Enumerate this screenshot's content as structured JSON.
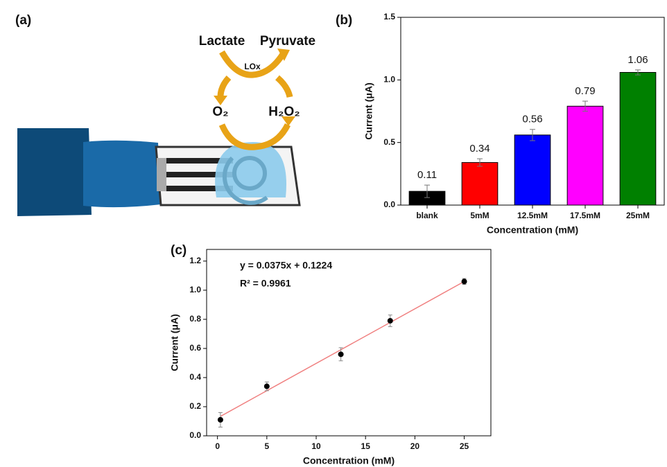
{
  "panel_labels": [
    "(a)",
    "(b)",
    "(c)"
  ],
  "diagram": {
    "substrate": "Lactate",
    "product": "Pyruvate",
    "enzyme": "LOx",
    "cosubstrate": "O₂",
    "coproduct": "H₂O₂"
  },
  "chart_data": [
    {
      "type": "bar",
      "xlabel": "Concentration (mM)",
      "ylabel": "Current (μA)",
      "categories": [
        "blank",
        "5mM",
        "12.5mM",
        "17.5mM",
        "25mM"
      ],
      "values": [
        0.11,
        0.34,
        0.56,
        0.79,
        1.06
      ],
      "errors": [
        0.05,
        0.03,
        0.045,
        0.04,
        0.02
      ],
      "colors": [
        "#000000",
        "#ff0000",
        "#0000ff",
        "#ff00ff",
        "#008000"
      ],
      "ylim": [
        0,
        1.5
      ],
      "yticks": [
        {
          "value": 0,
          "label": "0.0"
        },
        0.5,
        {
          "value": 1,
          "label": "1.0"
        },
        1.5
      ]
    },
    {
      "type": "scatter",
      "xlabel": "Concentration (mM)",
      "ylabel": "Current (μA)",
      "x": [
        0.3,
        5,
        12.5,
        17.5,
        25
      ],
      "values": [
        0.11,
        0.34,
        0.56,
        0.79,
        1.06
      ],
      "errors": [
        0.05,
        0.03,
        0.045,
        0.04,
        0.02
      ],
      "color": "#000000",
      "fit": {
        "equation": "y = 0.0375x + 0.1224",
        "r_squared": "R² = 0.9961",
        "slope": 0.0375,
        "intercept": 0.1224,
        "color": "#f08080"
      },
      "xlim": [
        -1.1,
        27.7
      ],
      "ylim": [
        0,
        1.28
      ],
      "xticks": [
        0,
        5,
        10,
        15,
        20,
        25
      ],
      "yticks": [
        {
          "value": 0,
          "label": "0.0"
        },
        0.2,
        0.4,
        0.6,
        0.8,
        {
          "value": 1,
          "label": "1.0"
        },
        1.2
      ]
    }
  ]
}
